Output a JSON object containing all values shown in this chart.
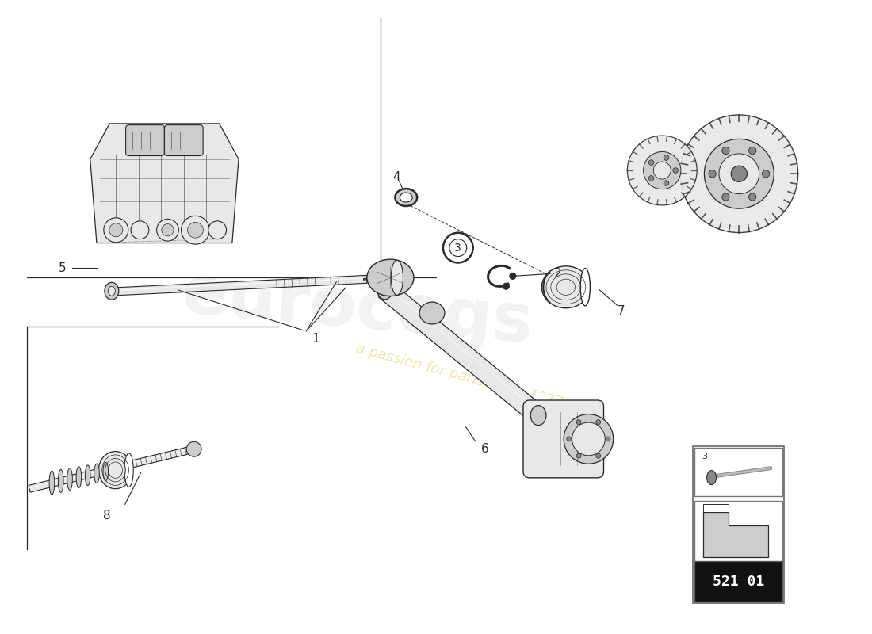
{
  "bg_color": "#ffffff",
  "lc": "#2a2a2a",
  "lc_light": "#999999",
  "fill_light": "#e8e8e8",
  "fill_mid": "#cccccc",
  "fill_dark": "#888888",
  "watermark_color": "#d4c84a",
  "watermark_alpha": 0.45,
  "part_number": "521 01",
  "fig_width": 11.0,
  "fig_height": 8.0,
  "dpi": 100,
  "border_line_color": "#444444",
  "label_fs": 11,
  "label_bold": true,
  "eurocogs_color": "#cccccc",
  "eurocogs_alpha": 0.25
}
